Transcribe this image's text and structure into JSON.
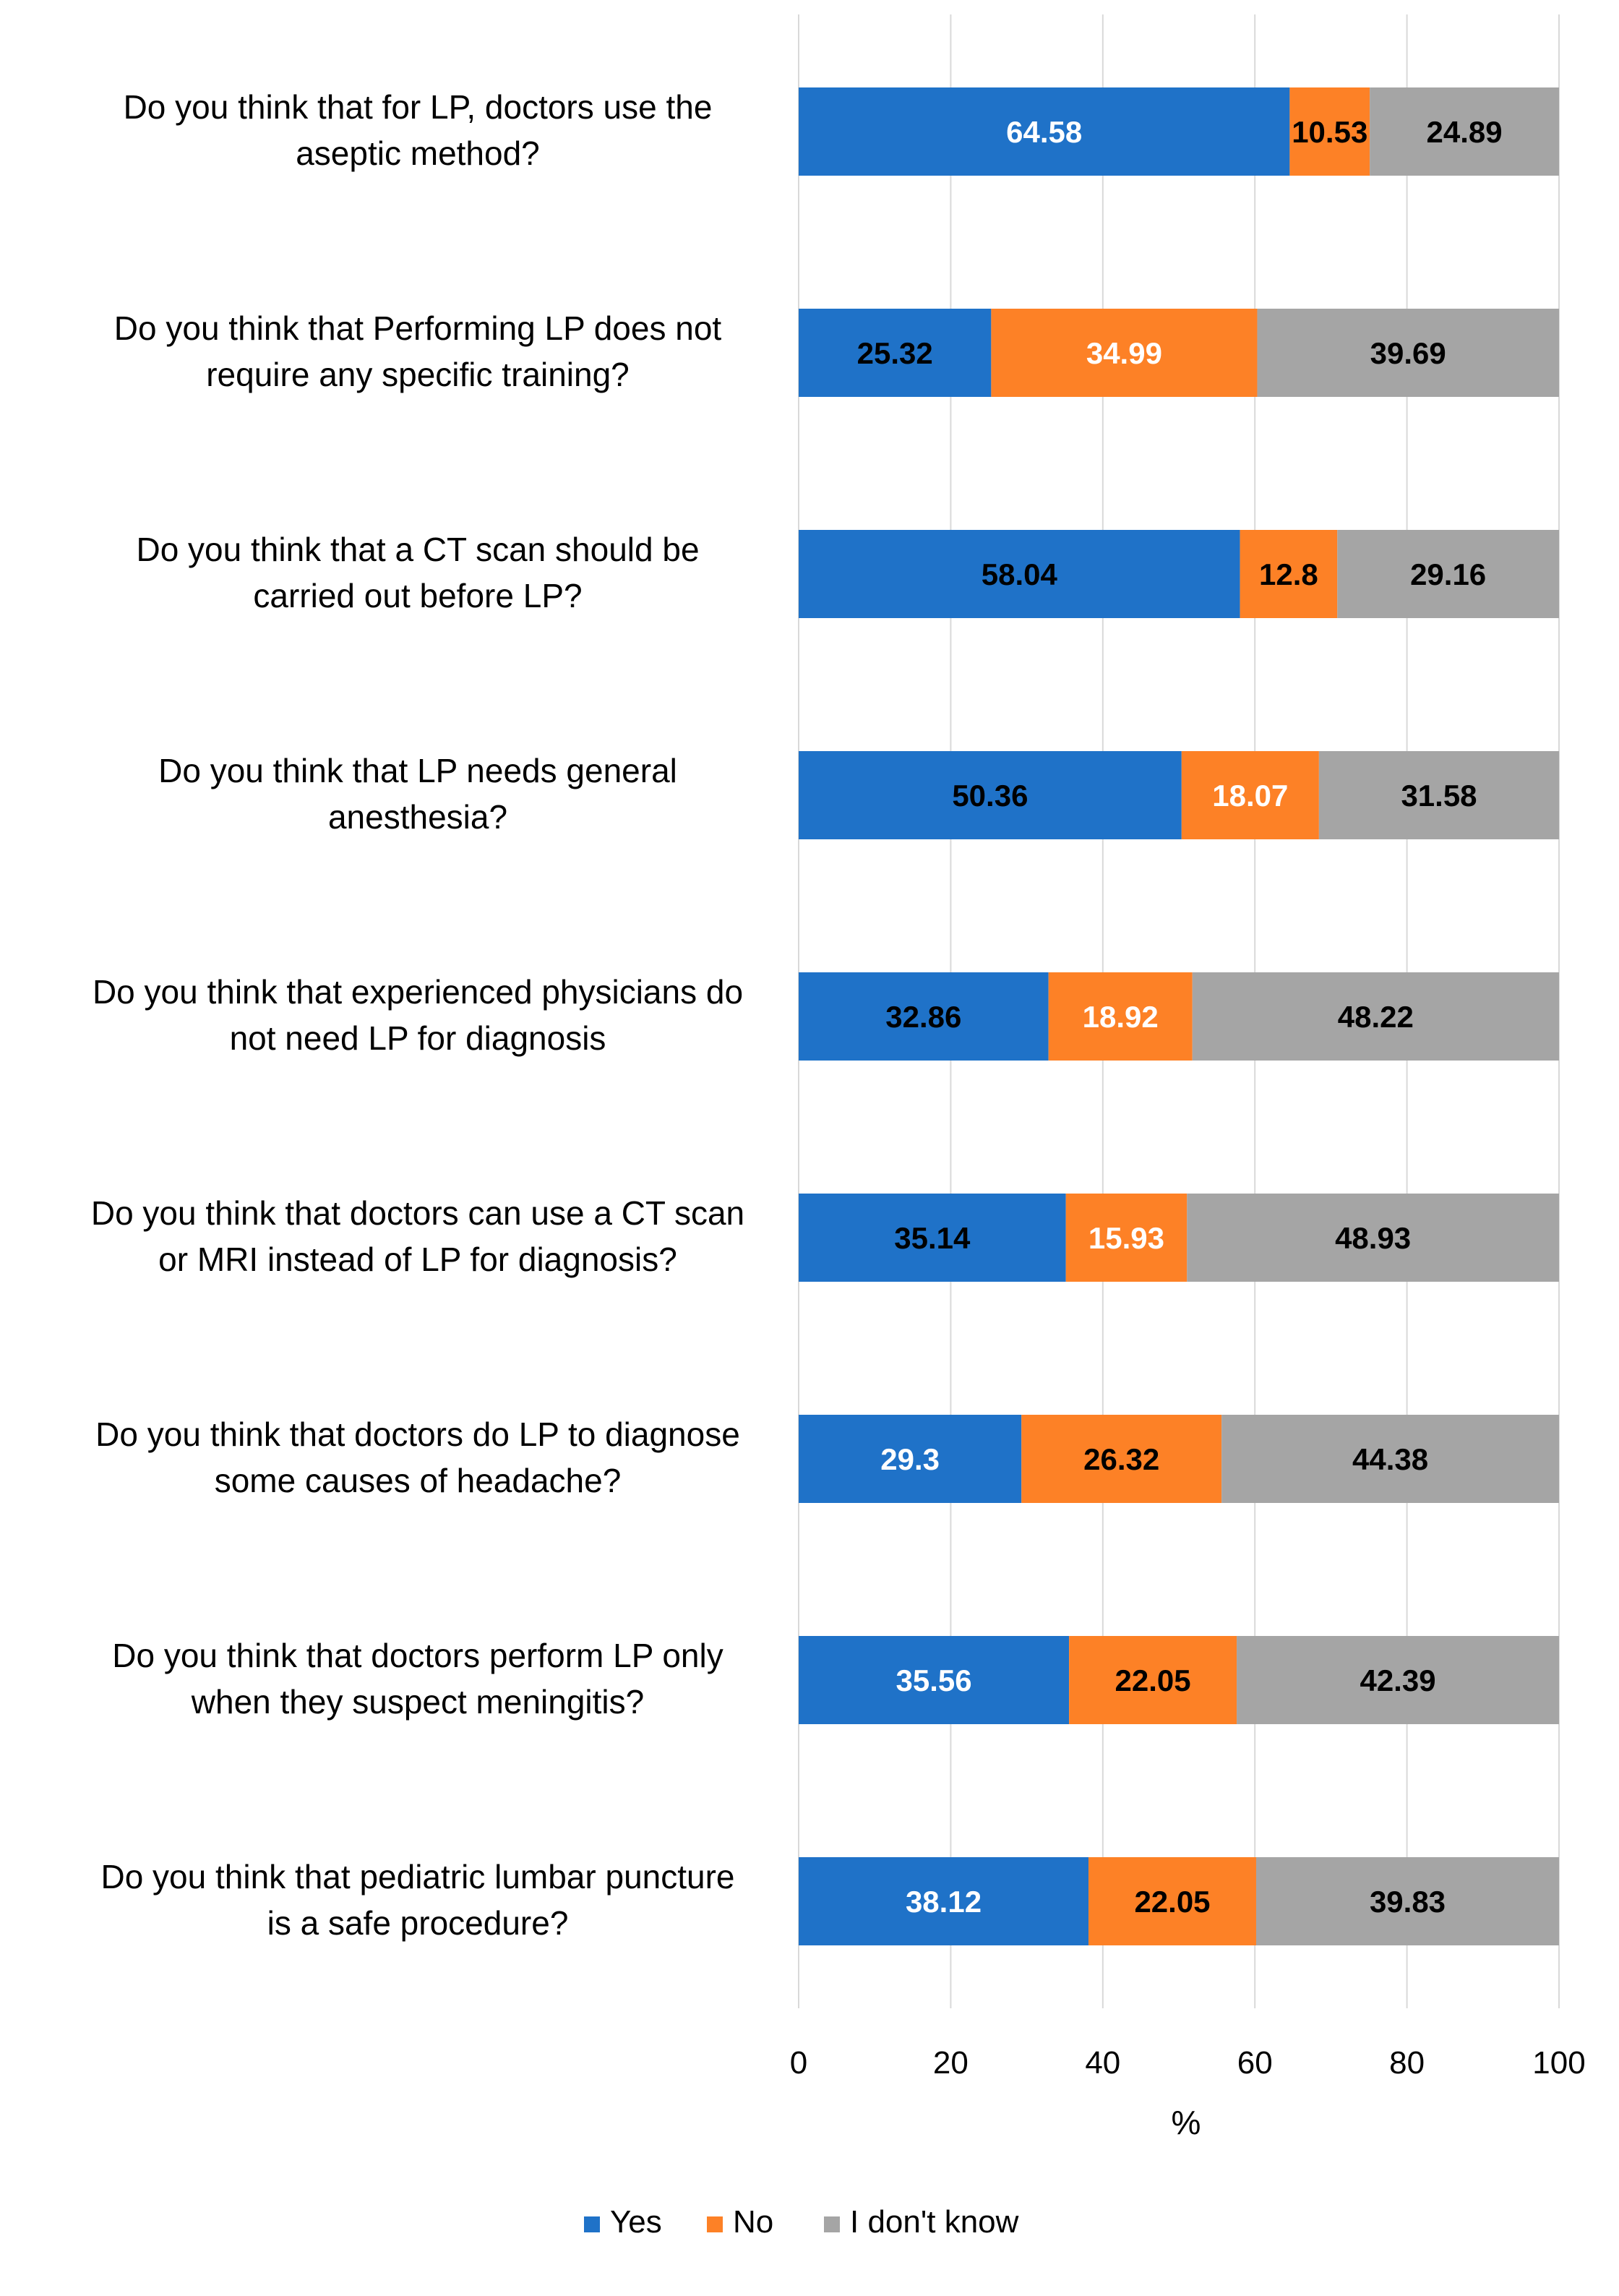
{
  "chart_data": {
    "type": "bar",
    "orientation": "horizontal",
    "stacked": true,
    "categories": [
      [
        "Do you think that for LP, doctors use the",
        "aseptic method?"
      ],
      [
        "Do you think that Performing LP does not",
        "require any specific training?"
      ],
      [
        "Do you think that a CT scan should be",
        "carried out before LP?"
      ],
      [
        "Do you think that LP needs general",
        "anesthesia?"
      ],
      [
        "Do you think that experienced physicians do",
        "not need LP for diagnosis"
      ],
      [
        "Do you think that doctors can use a CT scan",
        "or MRI instead of LP for diagnosis?"
      ],
      [
        "Do you think that doctors do LP to diagnose",
        "some causes of headache?"
      ],
      [
        "Do you think that doctors perform LP only",
        "when they suspect meningitis?"
      ],
      [
        "Do you think that pediatric lumbar puncture",
        "is a safe procedure?"
      ]
    ],
    "series": [
      {
        "name": "Yes",
        "color": "#1f72c8",
        "label_colors": [
          "#ffffff",
          "#000000",
          "#000000",
          "#000000",
          "#000000",
          "#000000",
          "#ffffff",
          "#ffffff",
          "#ffffff"
        ],
        "values": [
          64.58,
          25.32,
          58.04,
          50.36,
          32.86,
          35.14,
          29.3,
          35.56,
          38.12
        ]
      },
      {
        "name": "No",
        "color": "#fd8126",
        "label_colors": [
          "#000000",
          "#ffffff",
          "#000000",
          "#ffffff",
          "#ffffff",
          "#ffffff",
          "#000000",
          "#000000",
          "#000000"
        ],
        "values": [
          10.53,
          34.99,
          12.8,
          18.07,
          18.92,
          15.93,
          26.32,
          22.05,
          22.05
        ]
      },
      {
        "name": "I don't know",
        "color": "#a5a5a5",
        "label_colors": [
          "#000000",
          "#000000",
          "#000000",
          "#000000",
          "#000000",
          "#000000",
          "#000000",
          "#000000",
          "#000000"
        ],
        "values": [
          24.89,
          39.69,
          29.16,
          31.58,
          48.22,
          48.93,
          44.38,
          42.39,
          39.83
        ]
      }
    ],
    "x_ticks": [
      "0",
      "20",
      "40",
      "60",
      "80",
      "100"
    ],
    "xlim": [
      0,
      100
    ],
    "xlabel": "%",
    "ylabel": "",
    "title": "",
    "grid": "vertical",
    "legend": "bottom-center"
  }
}
